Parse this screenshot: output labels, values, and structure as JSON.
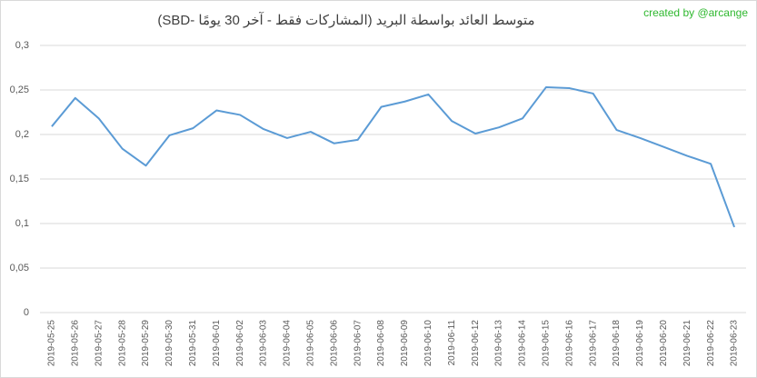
{
  "chart_data": {
    "type": "line",
    "title": "متوسط العائد بواسطة البريد (المشاركات فقط - آخر 30 يومًا -SBD)",
    "watermark": "created by @arcange",
    "categories": [
      "2019-05-25",
      "2019-05-26",
      "2019-05-27",
      "2019-05-28",
      "2019-05-29",
      "2019-05-30",
      "2019-05-31",
      "2019-06-01",
      "2019-06-02",
      "2019-06-03",
      "2019-06-04",
      "2019-06-05",
      "2019-06-06",
      "2019-06-07",
      "2019-06-08",
      "2019-06-09",
      "2019-06-10",
      "2019-06-11",
      "2019-06-12",
      "2019-06-13",
      "2019-06-14",
      "2019-06-15",
      "2019-06-16",
      "2019-06-17",
      "2019-06-18",
      "2019-06-19",
      "2019-06-20",
      "2019-06-21",
      "2019-06-22",
      "2019-06-23"
    ],
    "values": [
      0.209,
      0.241,
      0.218,
      0.184,
      0.165,
      0.199,
      0.207,
      0.227,
      0.222,
      0.206,
      0.196,
      0.203,
      0.19,
      0.194,
      0.231,
      0.237,
      0.245,
      0.215,
      0.201,
      0.208,
      0.218,
      0.253,
      0.252,
      0.246,
      0.205,
      0.196,
      0.186,
      0.176,
      0.167,
      0.096
    ],
    "color": "#5b9bd5",
    "ylim": [
      0,
      0.3
    ],
    "yticks": [
      0,
      {
        "value": 0.05,
        "label": "0,05"
      },
      {
        "value": 0.1,
        "label": "0,1"
      },
      {
        "value": 0.15,
        "label": "0,15"
      },
      {
        "value": 0.2,
        "label": "0,2"
      },
      {
        "value": 0.25,
        "label": "0,25"
      },
      {
        "value": 0.3,
        "label": "0,3"
      }
    ],
    "grid": true
  }
}
